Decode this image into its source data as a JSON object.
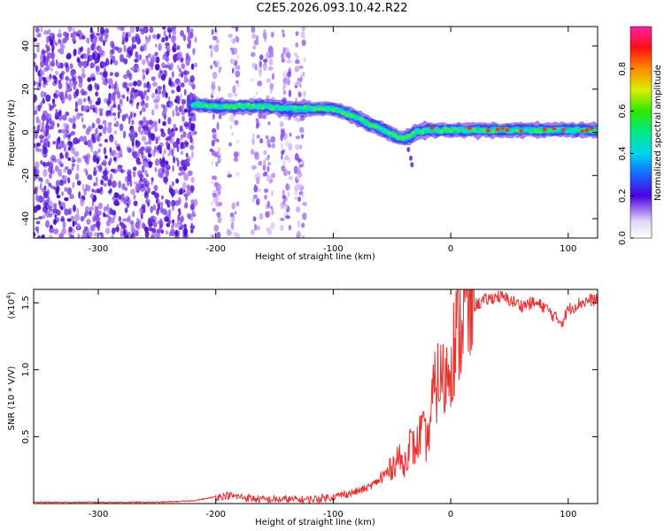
{
  "title": "C2E5.2026.093.10.42.R22",
  "colors": {
    "line": "#e8312f",
    "purple_dark": "#5a18d8",
    "purple_light": "#c9aef5",
    "frame": "#000000"
  },
  "chart_data": [
    {
      "type": "heatmap",
      "xlabel": "Height of straight line (km)",
      "ylabel": "Frequency (Hz)",
      "xlim": [
        -355,
        125
      ],
      "ylim": [
        -49,
        49
      ],
      "xticks": [
        -300,
        -200,
        -100,
        0,
        100
      ],
      "yticks": [
        -40,
        -20,
        0,
        20,
        40
      ],
      "xtick_labels": [
        "-300",
        "-200",
        "-100",
        "0",
        "100"
      ],
      "ytick_labels": [
        "-40",
        "-20",
        "0",
        "20",
        "40"
      ],
      "ridge": {
        "x": [
          -220,
          -200,
          -180,
          -160,
          -140,
          -120,
          -100,
          -90,
          -80,
          -70,
          -60,
          -50,
          -40,
          -35,
          -30,
          -20,
          -10,
          0,
          20,
          40,
          60,
          80,
          100,
          125
        ],
        "freq": [
          13,
          12,
          12,
          12,
          11,
          11,
          11,
          9,
          7,
          4,
          2,
          -1,
          -3,
          -2,
          0,
          1,
          1,
          1,
          1,
          1,
          1,
          1,
          1,
          1
        ]
      },
      "noise_regions": [
        {
          "x_from": -355,
          "x_to": -217,
          "density": "high"
        },
        {
          "x_from": -210,
          "x_to": -125,
          "density": "medium"
        }
      ],
      "colorbar": {
        "label": "Normalized spectral amplitude",
        "range": [
          0.0,
          1.0
        ],
        "ticks": [
          0.0,
          0.2,
          0.4,
          0.6,
          0.8
        ],
        "tick_labels": [
          "0.0",
          "0.2",
          "0.4",
          "0.6",
          "0.8"
        ]
      }
    },
    {
      "type": "line",
      "xlabel": "Height of straight line (km)",
      "ylabel": "SNR (10 * V/V)",
      "scale_label": "(x10",
      "scale_exp": "4",
      "scale_close": ")",
      "xlim": [
        -355,
        125
      ],
      "ylim": [
        0,
        1.6
      ],
      "xticks": [
        -300,
        -200,
        -100,
        0,
        100
      ],
      "yticks": [
        0.5,
        1.0,
        1.5
      ],
      "xtick_labels": [
        "-300",
        "-200",
        "-100",
        "0",
        "100"
      ],
      "ytick_labels": [
        "0.5",
        "1.0",
        "1.5"
      ],
      "series": [
        {
          "name": "SNR",
          "x": [
            -355,
            -300,
            -250,
            -220,
            -200,
            -190,
            -180,
            -160,
            -140,
            -120,
            -100,
            -90,
            -80,
            -70,
            -60,
            -55,
            -50,
            -45,
            -40,
            -35,
            -30,
            -25,
            -20,
            -15,
            -10,
            -5,
            0,
            5,
            10,
            15,
            20,
            30,
            40,
            50,
            60,
            70,
            80,
            90,
            95,
            100,
            110,
            125
          ],
          "y": [
            0.01,
            0.01,
            0.01,
            0.02,
            0.05,
            0.06,
            0.05,
            0.03,
            0.03,
            0.03,
            0.05,
            0.07,
            0.09,
            0.12,
            0.18,
            0.22,
            0.27,
            0.35,
            0.28,
            0.45,
            0.4,
            0.55,
            0.45,
            0.8,
            0.95,
            0.9,
            1.1,
            1.25,
            1.4,
            1.42,
            1.48,
            1.52,
            1.55,
            1.52,
            1.48,
            1.5,
            1.47,
            1.38,
            1.36,
            1.45,
            1.5,
            1.53
          ]
        }
      ]
    }
  ]
}
